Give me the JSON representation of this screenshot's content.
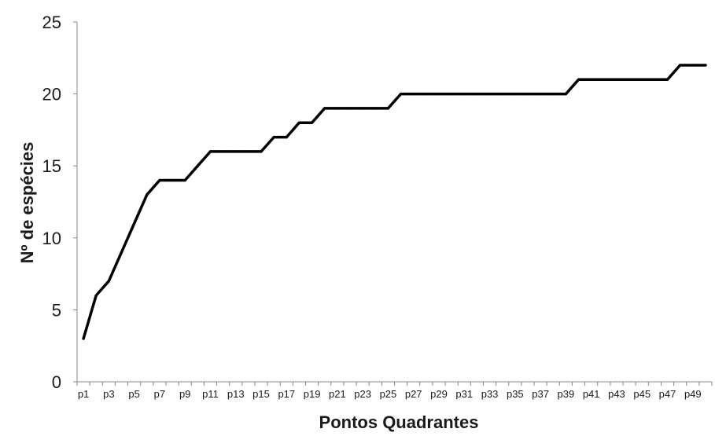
{
  "chart_data": {
    "type": "line",
    "title": "",
    "xlabel": "Pontos Quadrantes",
    "ylabel": "Nº de espécies",
    "ylim": [
      0,
      25
    ],
    "yticks": [
      "0",
      "5",
      "10",
      "15",
      "20",
      "25"
    ],
    "grid": false,
    "legend": "none",
    "line_color": "#000000",
    "categories": [
      "p1",
      "p2",
      "p3",
      "p4",
      "p5",
      "p6",
      "p7",
      "p8",
      "p9",
      "p10",
      "p11",
      "p12",
      "p13",
      "p14",
      "p15",
      "p16",
      "p17",
      "p18",
      "p19",
      "p20",
      "p21",
      "p22",
      "p23",
      "p24",
      "p25",
      "p26",
      "p27",
      "p28",
      "p29",
      "p30",
      "p31",
      "p32",
      "p33",
      "p34",
      "p35",
      "p36",
      "p37",
      "p38",
      "p39",
      "p40",
      "p41",
      "p42",
      "p43",
      "p44",
      "p45",
      "p46",
      "p47",
      "p48",
      "p49",
      "p50"
    ],
    "visible_tick_labels": [
      "p1",
      "p3",
      "p5",
      "p7",
      "p9",
      "p11",
      "p13",
      "p15",
      "p17",
      "p19",
      "p21",
      "p23",
      "p25",
      "p27",
      "p29",
      "p31",
      "p33",
      "p35",
      "p37",
      "p39",
      "p41",
      "p43",
      "p45",
      "p47",
      "p49"
    ],
    "series": [
      {
        "values": [
          3,
          6,
          7,
          9,
          11,
          13,
          14,
          14,
          14,
          15,
          16,
          16,
          16,
          16,
          16,
          17,
          17,
          18,
          18,
          19,
          19,
          19,
          19,
          19,
          19,
          20,
          20,
          20,
          20,
          20,
          20,
          20,
          20,
          20,
          20,
          20,
          20,
          20,
          20,
          21,
          21,
          21,
          21,
          21,
          21,
          21,
          21,
          22,
          22,
          22
        ]
      }
    ]
  }
}
